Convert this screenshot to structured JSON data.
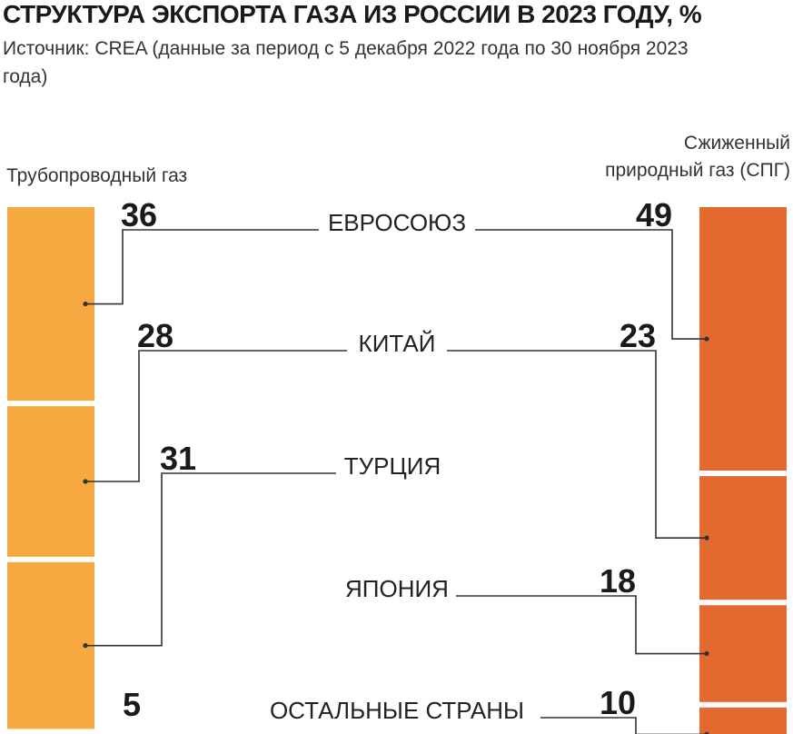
{
  "title": "СТРУКТУРА ЭКСПОРТА ГАЗА ИЗ РОССИИ В 2023 ГОДУ, %",
  "subtitle": "Источник: CREA (данные за период с 5 декабря 2022 года по 30 ноября 2023 года)",
  "colors": {
    "pipeline": "#F6A940",
    "lng": "#E26A2F",
    "line": "#333333"
  },
  "chart_data": {
    "type": "bar",
    "orientation": "stacked-vertical",
    "series": [
      {
        "name": "Трубопроводный газ",
        "segments": [
          {
            "category": "ЕВРОСОЮЗ",
            "value": 36
          },
          {
            "category": "КИТАЙ",
            "value": 28
          },
          {
            "category": "ТУРЦИЯ",
            "value": 31
          },
          {
            "category": "ОСТАЛЬНЫЕ СТРАНЫ",
            "value": 5
          }
        ]
      },
      {
        "name": "Сжиженный природный газ (СПГ)",
        "segments": [
          {
            "category": "ЕВРОСОЮЗ",
            "value": 49
          },
          {
            "category": "КИТАЙ",
            "value": 23
          },
          {
            "category": "ЯПОНИЯ",
            "value": 18
          },
          {
            "category": "ОСТАЛЬНЫЕ СТРАНЫ",
            "value": 10
          }
        ]
      }
    ],
    "categories": [
      "ЕВРОСОЮЗ",
      "КИТАЙ",
      "ТУРЦИЯ",
      "ЯПОНИЯ",
      "ОСТАЛЬНЫЕ СТРАНЫ"
    ]
  }
}
